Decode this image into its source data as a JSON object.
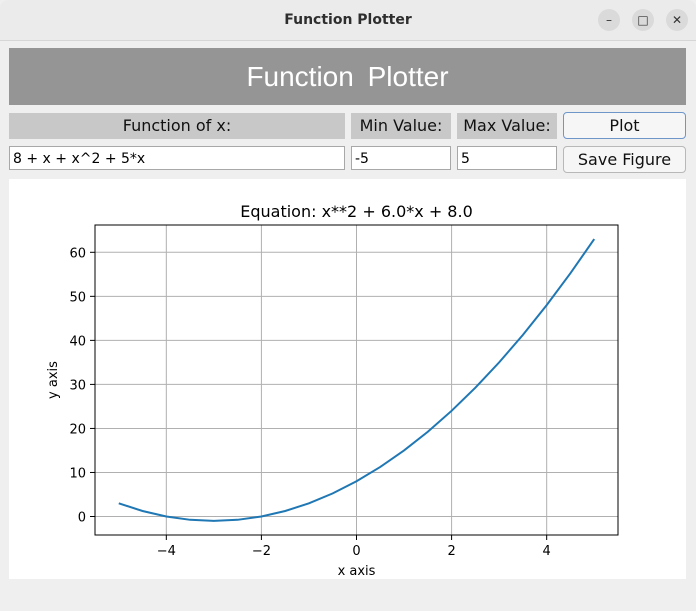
{
  "window": {
    "title": "Function Plotter",
    "minimize_glyph": "–",
    "maximize_glyph": "□",
    "close_glyph": "✕"
  },
  "header": {
    "title": "Function  Plotter"
  },
  "form": {
    "function_label": "Function of x:",
    "min_label": "Min Value:",
    "max_label": "Max Value:",
    "function_value": "8 + x + x^2 + 5*x",
    "min_value": "-5",
    "max_value": "5",
    "plot_button": "Plot",
    "save_button": "Save Figure"
  },
  "chart_data": {
    "type": "line",
    "title": "Equation: x**2 + 6.0*x + 8.0",
    "xlabel": "x axis",
    "ylabel": "y axis",
    "xlim": [
      -5.5,
      5.5
    ],
    "ylim": [
      -4.2,
      66.2
    ],
    "xticks": [
      -4,
      -2,
      0,
      2,
      4
    ],
    "xtick_labels": [
      "−4",
      "−2",
      "0",
      "2",
      "4"
    ],
    "yticks": [
      0,
      10,
      20,
      30,
      40,
      50,
      60
    ],
    "ytick_labels": [
      "0",
      "10",
      "20",
      "30",
      "40",
      "50",
      "60"
    ],
    "grid": true,
    "line_color": "#1f77b4",
    "series": [
      {
        "x": [
          -5,
          -4.5,
          -4,
          -3.5,
          -3,
          -2.5,
          -2,
          -1.5,
          -1,
          -0.5,
          0,
          0.5,
          1,
          1.5,
          2,
          2.5,
          3,
          3.5,
          4,
          4.5,
          5
        ],
        "y": [
          3,
          1.25,
          0,
          -0.75,
          -1,
          -0.75,
          0,
          1.25,
          3,
          5.25,
          8,
          11.25,
          15,
          19.25,
          24,
          29.25,
          35,
          41.25,
          48,
          55.25,
          63
        ]
      }
    ]
  }
}
